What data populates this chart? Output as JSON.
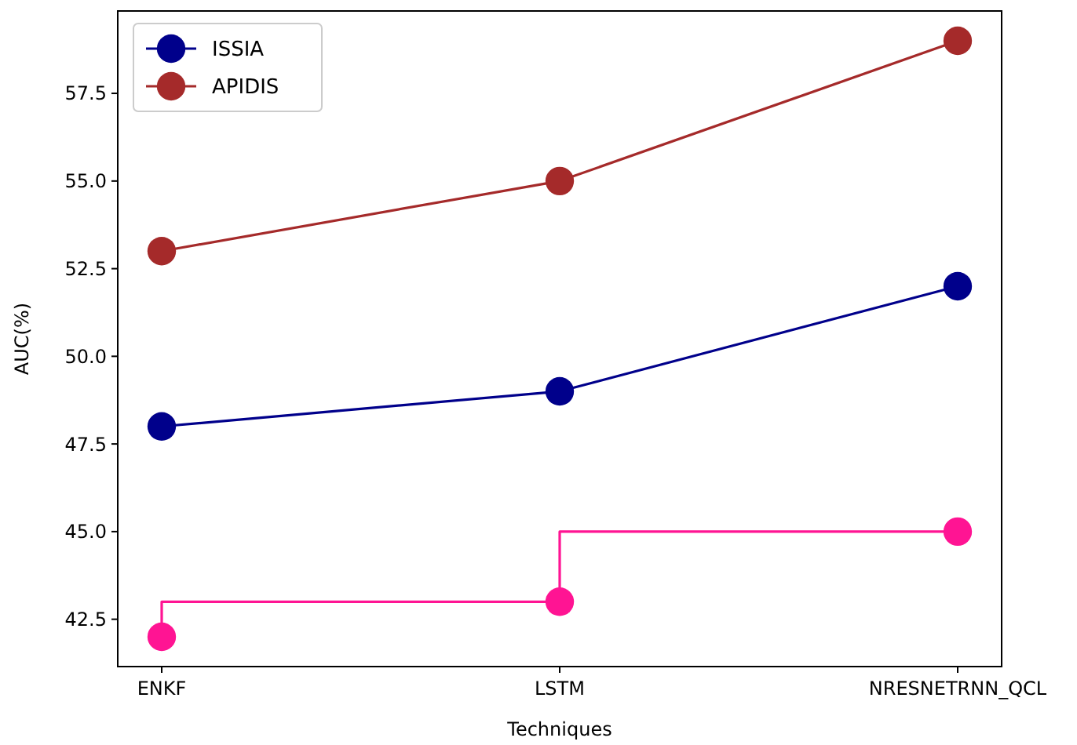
{
  "chart_data": {
    "type": "line",
    "xlabel": "Techniques",
    "ylabel": "AUC(%)",
    "categories": [
      "ENKF",
      "LSTM",
      "NRESNETRNN_QCL"
    ],
    "ylim": [
      41.15,
      59.85
    ],
    "yticks": [
      {
        "value": 42.5,
        "label": "42.5"
      },
      {
        "value": 45,
        "label": "45.0"
      },
      {
        "value": 47.5,
        "label": "47.5"
      },
      {
        "value": 50,
        "label": "50.0"
      },
      {
        "value": 52.5,
        "label": "52.5"
      },
      {
        "value": 55,
        "label": "55.0"
      },
      {
        "value": 57.5,
        "label": "57.5"
      }
    ],
    "legend": "top left",
    "marker": "circle",
    "grid": false,
    "series": [
      {
        "type": "step",
        "color": "#ff1493",
        "values": [
          42,
          43,
          45
        ]
      },
      {
        "name": "ISSIA",
        "color": "#00008b",
        "values": [
          48,
          49,
          52
        ]
      },
      {
        "name": "APIDIS",
        "color": "#a52a2a",
        "values": [
          53,
          55,
          59
        ]
      }
    ]
  }
}
